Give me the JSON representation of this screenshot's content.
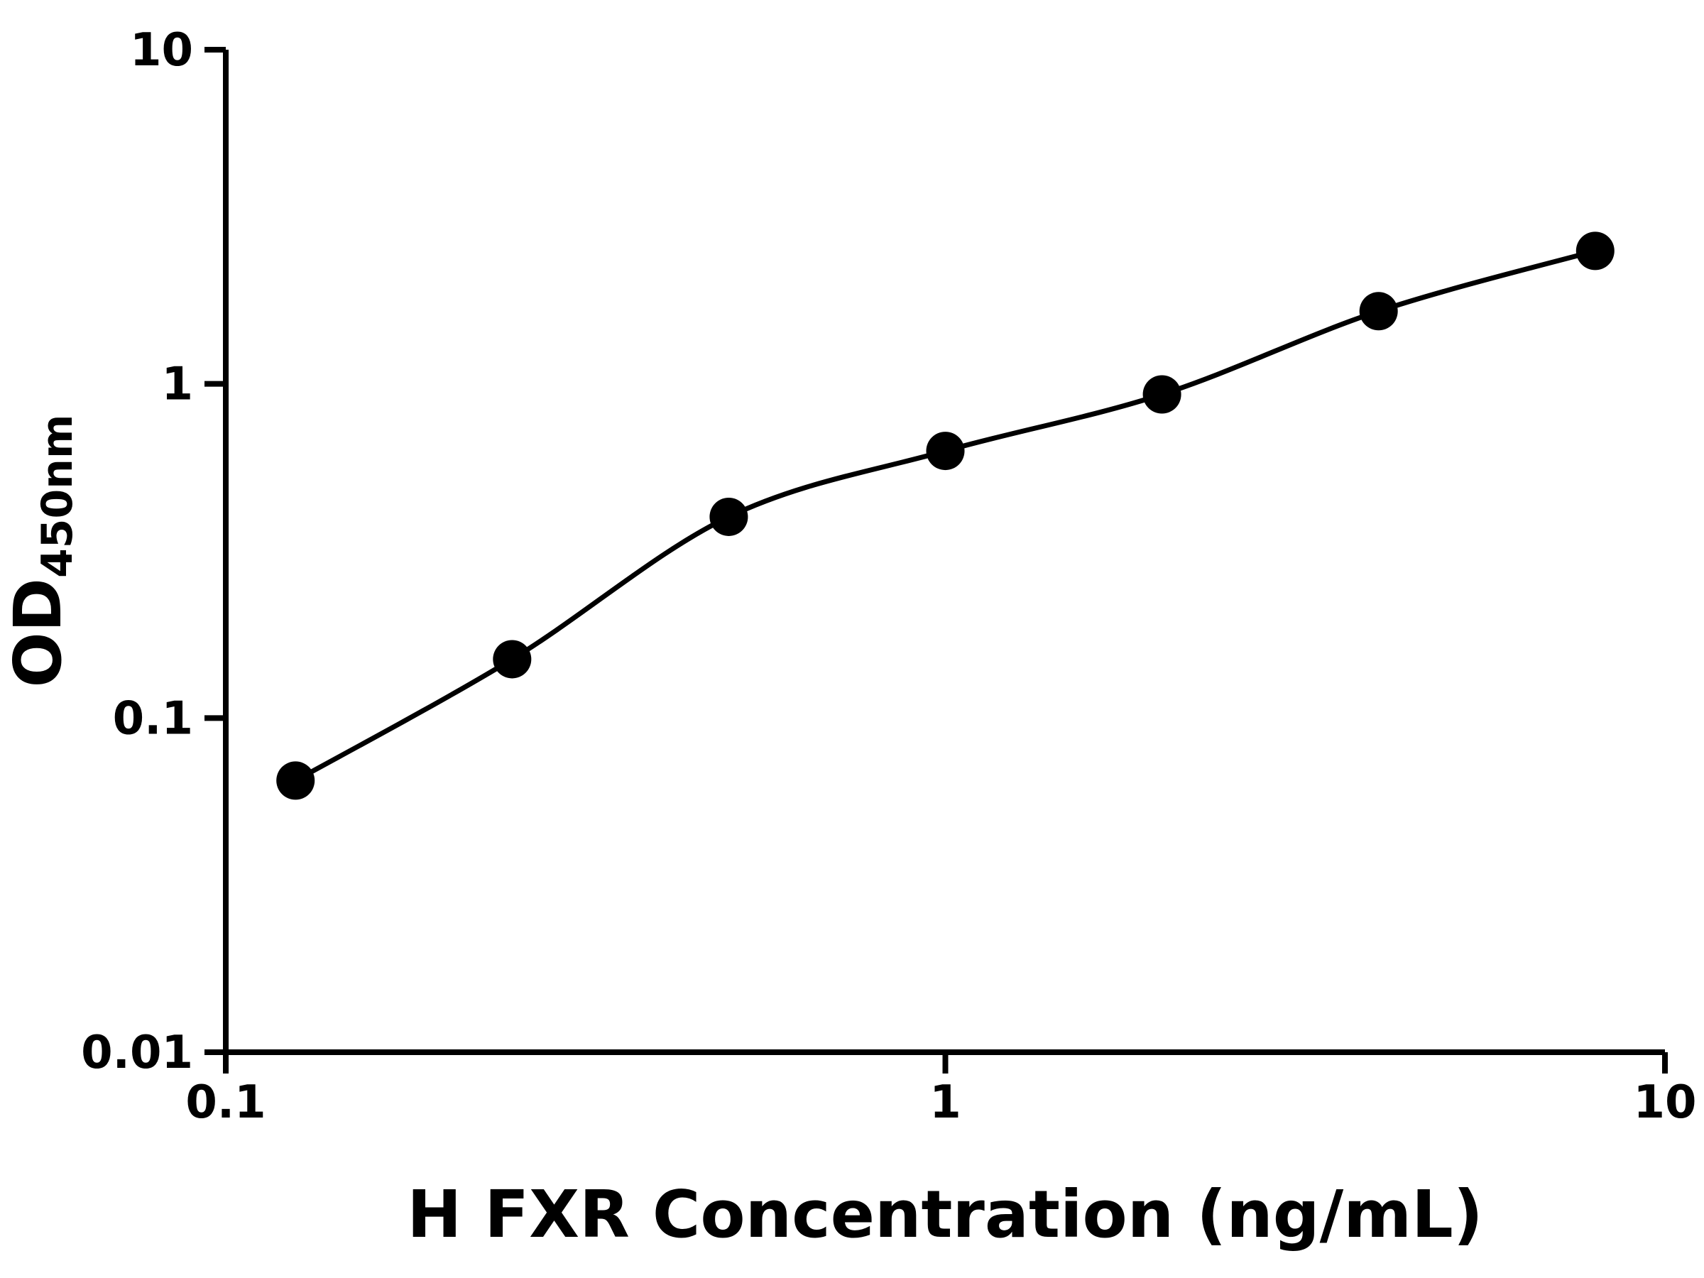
{
  "chart_data": {
    "type": "scatter",
    "title": "",
    "xlabel": "H FXR Concentration (ng/mL)",
    "ylabel": "OD450nm",
    "ylabel_main": "OD",
    "ylabel_sub": "450nm",
    "x_scale": "log",
    "y_scale": "log",
    "xlim": [
      0.1,
      10
    ],
    "ylim": [
      0.01,
      10
    ],
    "x": [
      0.125,
      0.25,
      0.5,
      1,
      2,
      4,
      8
    ],
    "y": [
      0.065,
      0.15,
      0.4,
      0.63,
      0.93,
      1.65,
      2.5
    ],
    "x_ticks": [
      {
        "v": 0.1,
        "label": "0.1"
      },
      {
        "v": 1,
        "label": "1"
      },
      {
        "v": 10,
        "label": "10"
      }
    ],
    "y_ticks": [
      {
        "v": 0.01,
        "label": "0.01"
      },
      {
        "v": 0.1,
        "label": "0.1"
      },
      {
        "v": 1,
        "label": "1"
      },
      {
        "v": 10,
        "label": "10"
      }
    ],
    "grid": false,
    "legend": null,
    "marker": "circle",
    "fit_line": "smooth",
    "point_color": "#000000",
    "line_color": "#000000",
    "axis_color": "#000000"
  }
}
